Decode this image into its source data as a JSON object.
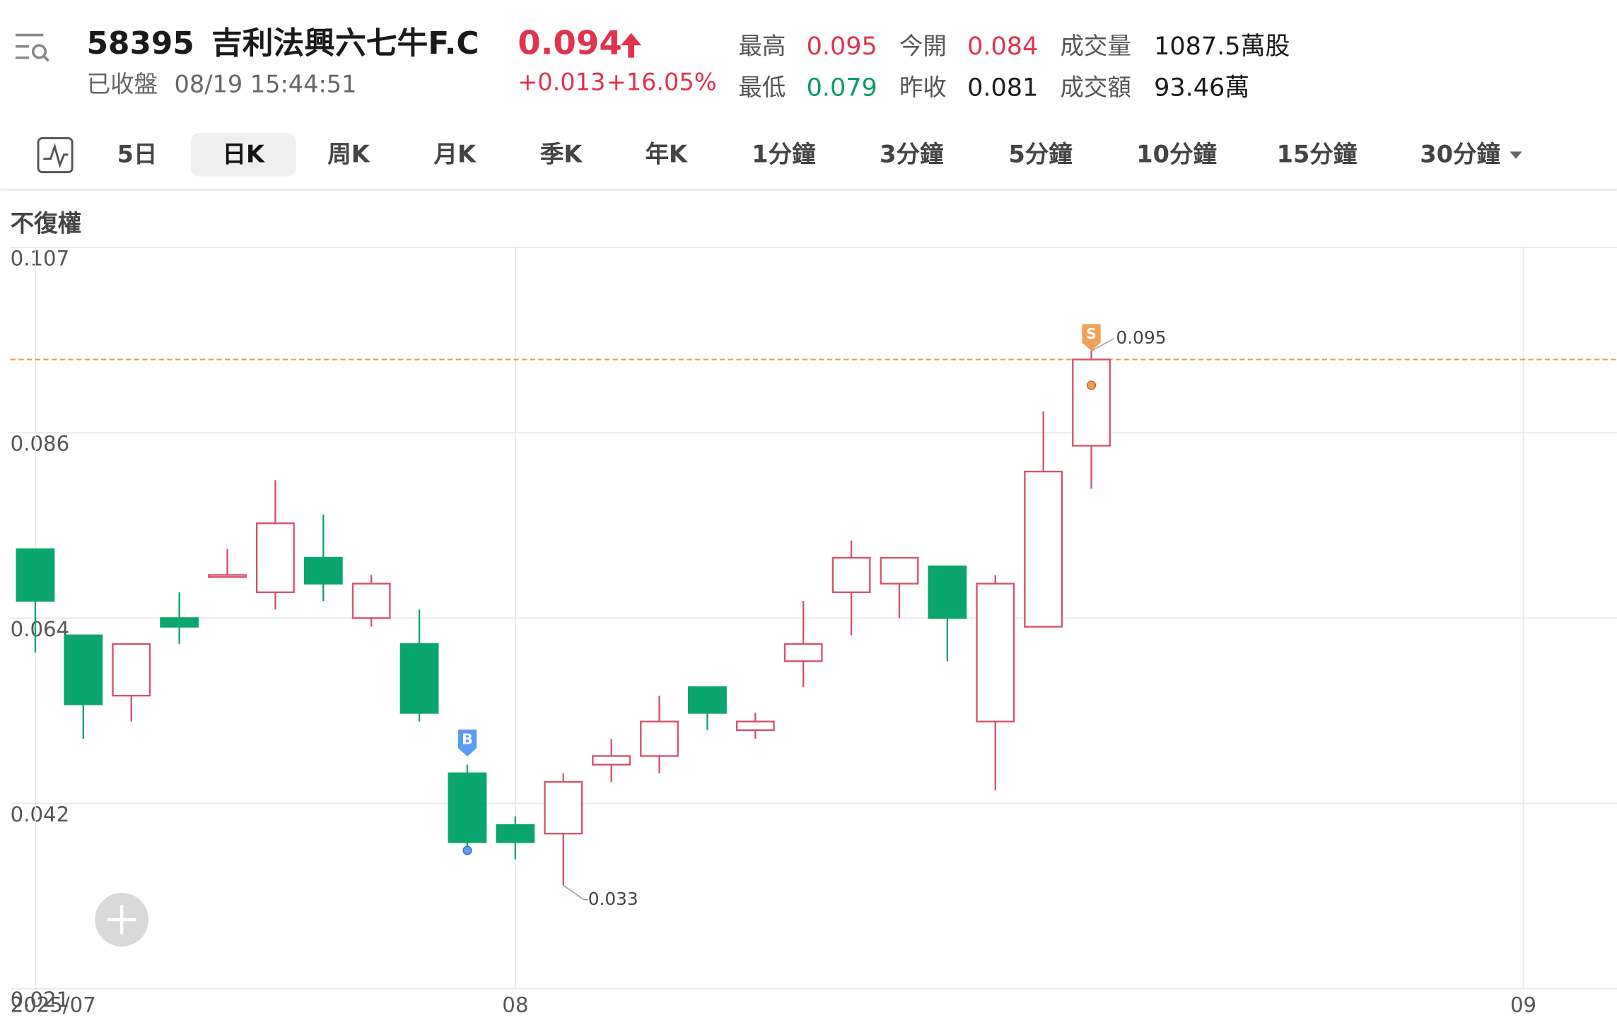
{
  "header": {
    "code": "58395",
    "name": "吉利法興六七牛F.C",
    "price": 0.094,
    "change": "+0.013",
    "change_pct": "+16.05%",
    "status": "已收盤",
    "time": "08/19 15:44:51",
    "stats": [
      {
        "label": "最高",
        "value": 0.095
      },
      {
        "label": "今開",
        "value": 0.084
      },
      {
        "label": "成交量",
        "value": "1087.5萬股"
      },
      {
        "label": "最低",
        "value": 0.079
      },
      {
        "label": "昨收",
        "value": 0.081
      },
      {
        "label": "成交額",
        "value": "93.46萬"
      }
    ]
  },
  "tabs": [
    "5日",
    "日K",
    "周K",
    "月K",
    "季K",
    "年K",
    "1分鐘",
    "3分鐘",
    "5分鐘",
    "10分鐘",
    "15分鐘",
    "30分鐘"
  ],
  "selected_tab": 1,
  "chart_data": {
    "type": "candlestick",
    "adjust_label": "不復權",
    "categories": [
      null,
      null,
      null,
      null,
      null,
      null,
      null,
      null,
      null,
      null,
      null,
      null,
      null,
      null,
      null,
      null,
      null,
      null,
      null,
      null,
      null,
      null,
      null
    ],
    "open": [
      0.072,
      0.062,
      0.055,
      0.064,
      0.069,
      0.067,
      0.071,
      0.064,
      0.061,
      0.046,
      0.04,
      0.039,
      0.047,
      0.048,
      0.056,
      0.051,
      0.059,
      0.067,
      0.068,
      0.07,
      0.052,
      0.063,
      0.084
    ],
    "high": [
      0.072,
      0.062,
      0.061,
      0.067,
      0.072,
      0.08,
      0.076,
      0.069,
      0.065,
      0.047,
      0.041,
      0.046,
      0.05,
      0.055,
      0.056,
      0.053,
      0.066,
      0.073,
      0.071,
      0.07,
      0.069,
      0.088,
      0.095
    ],
    "low": [
      0.06,
      0.05,
      0.052,
      0.061,
      0.069,
      0.065,
      0.066,
      0.063,
      0.052,
      0.037,
      0.036,
      0.033,
      0.045,
      0.046,
      0.051,
      0.05,
      0.056,
      0.062,
      0.064,
      0.059,
      0.044,
      0.063,
      0.079
    ],
    "close": [
      0.066,
      0.054,
      0.061,
      0.063,
      0.069,
      0.075,
      0.068,
      0.068,
      0.053,
      0.038,
      0.038,
      0.045,
      0.048,
      0.052,
      0.053,
      0.052,
      0.061,
      0.071,
      0.071,
      0.064,
      0.068,
      0.081,
      0.094
    ],
    "up_color": "#d6506c",
    "down_color": "#0aa66e",
    "ylim": [
      0.021,
      0.107
    ],
    "yticks": [
      0.107,
      {
        "value": 0.0855,
        "label": "0.086"
      },
      0.064,
      {
        "value": 0.0425,
        "label": "0.042"
      },
      0.021
    ],
    "xlim": [
      -0.52,
      32.95
    ],
    "xticks": [
      {
        "value": 0,
        "label": "2025/07"
      },
      {
        "value": 10,
        "label": "08"
      },
      {
        "value": 31,
        "label": "09"
      }
    ],
    "grid": true,
    "markers": [
      {
        "label": "B",
        "index": 9,
        "color": "#5b9cf0"
      },
      {
        "label": "S",
        "index": 22,
        "color": "#f0a05a"
      }
    ]
  }
}
